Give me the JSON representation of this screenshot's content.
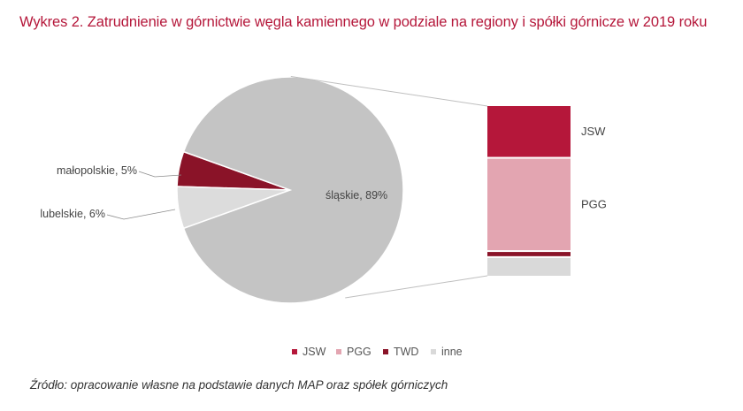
{
  "title": "Wykres 2. Zatrudnienie w górnictwie węgla kamiennego w podziale na regiony i spółki górnicze w 2019 roku",
  "source": "Źródło: opracowanie własne na podstawie danych MAP oraz spółek górniczych",
  "chart_data": {
    "type": "bar-of-pie",
    "pie": {
      "slices": [
        {
          "label": "śląskie, 89%",
          "value": 89,
          "color": "#c4c4c4"
        },
        {
          "label": "lubelskie, 6%",
          "value": 6,
          "color": "#dcdcdc"
        },
        {
          "label": "małopolskie, 5%",
          "value": 5,
          "color": "#8a1328"
        }
      ]
    },
    "bar": {
      "breakdown_of": "śląskie",
      "segments": [
        {
          "name": "JSW",
          "value": 30,
          "color": "#b5173a",
          "label": "JSW"
        },
        {
          "name": "PGG",
          "value": 54,
          "color": "#e3a5b1",
          "label": "PGG"
        },
        {
          "name": "TWD",
          "value": 2.5,
          "color": "#8a1328",
          "label": ""
        },
        {
          "name": "inne",
          "value": 10.5,
          "color": "#d9d9d9",
          "label": ""
        }
      ]
    },
    "legend": {
      "position": "bottom",
      "items": [
        {
          "name": "JSW",
          "color": "#b5173a"
        },
        {
          "name": "PGG",
          "color": "#e3a5b1"
        },
        {
          "name": "TWD",
          "color": "#8a1328"
        },
        {
          "name": "inne",
          "color": "#d9d9d9"
        }
      ]
    }
  }
}
